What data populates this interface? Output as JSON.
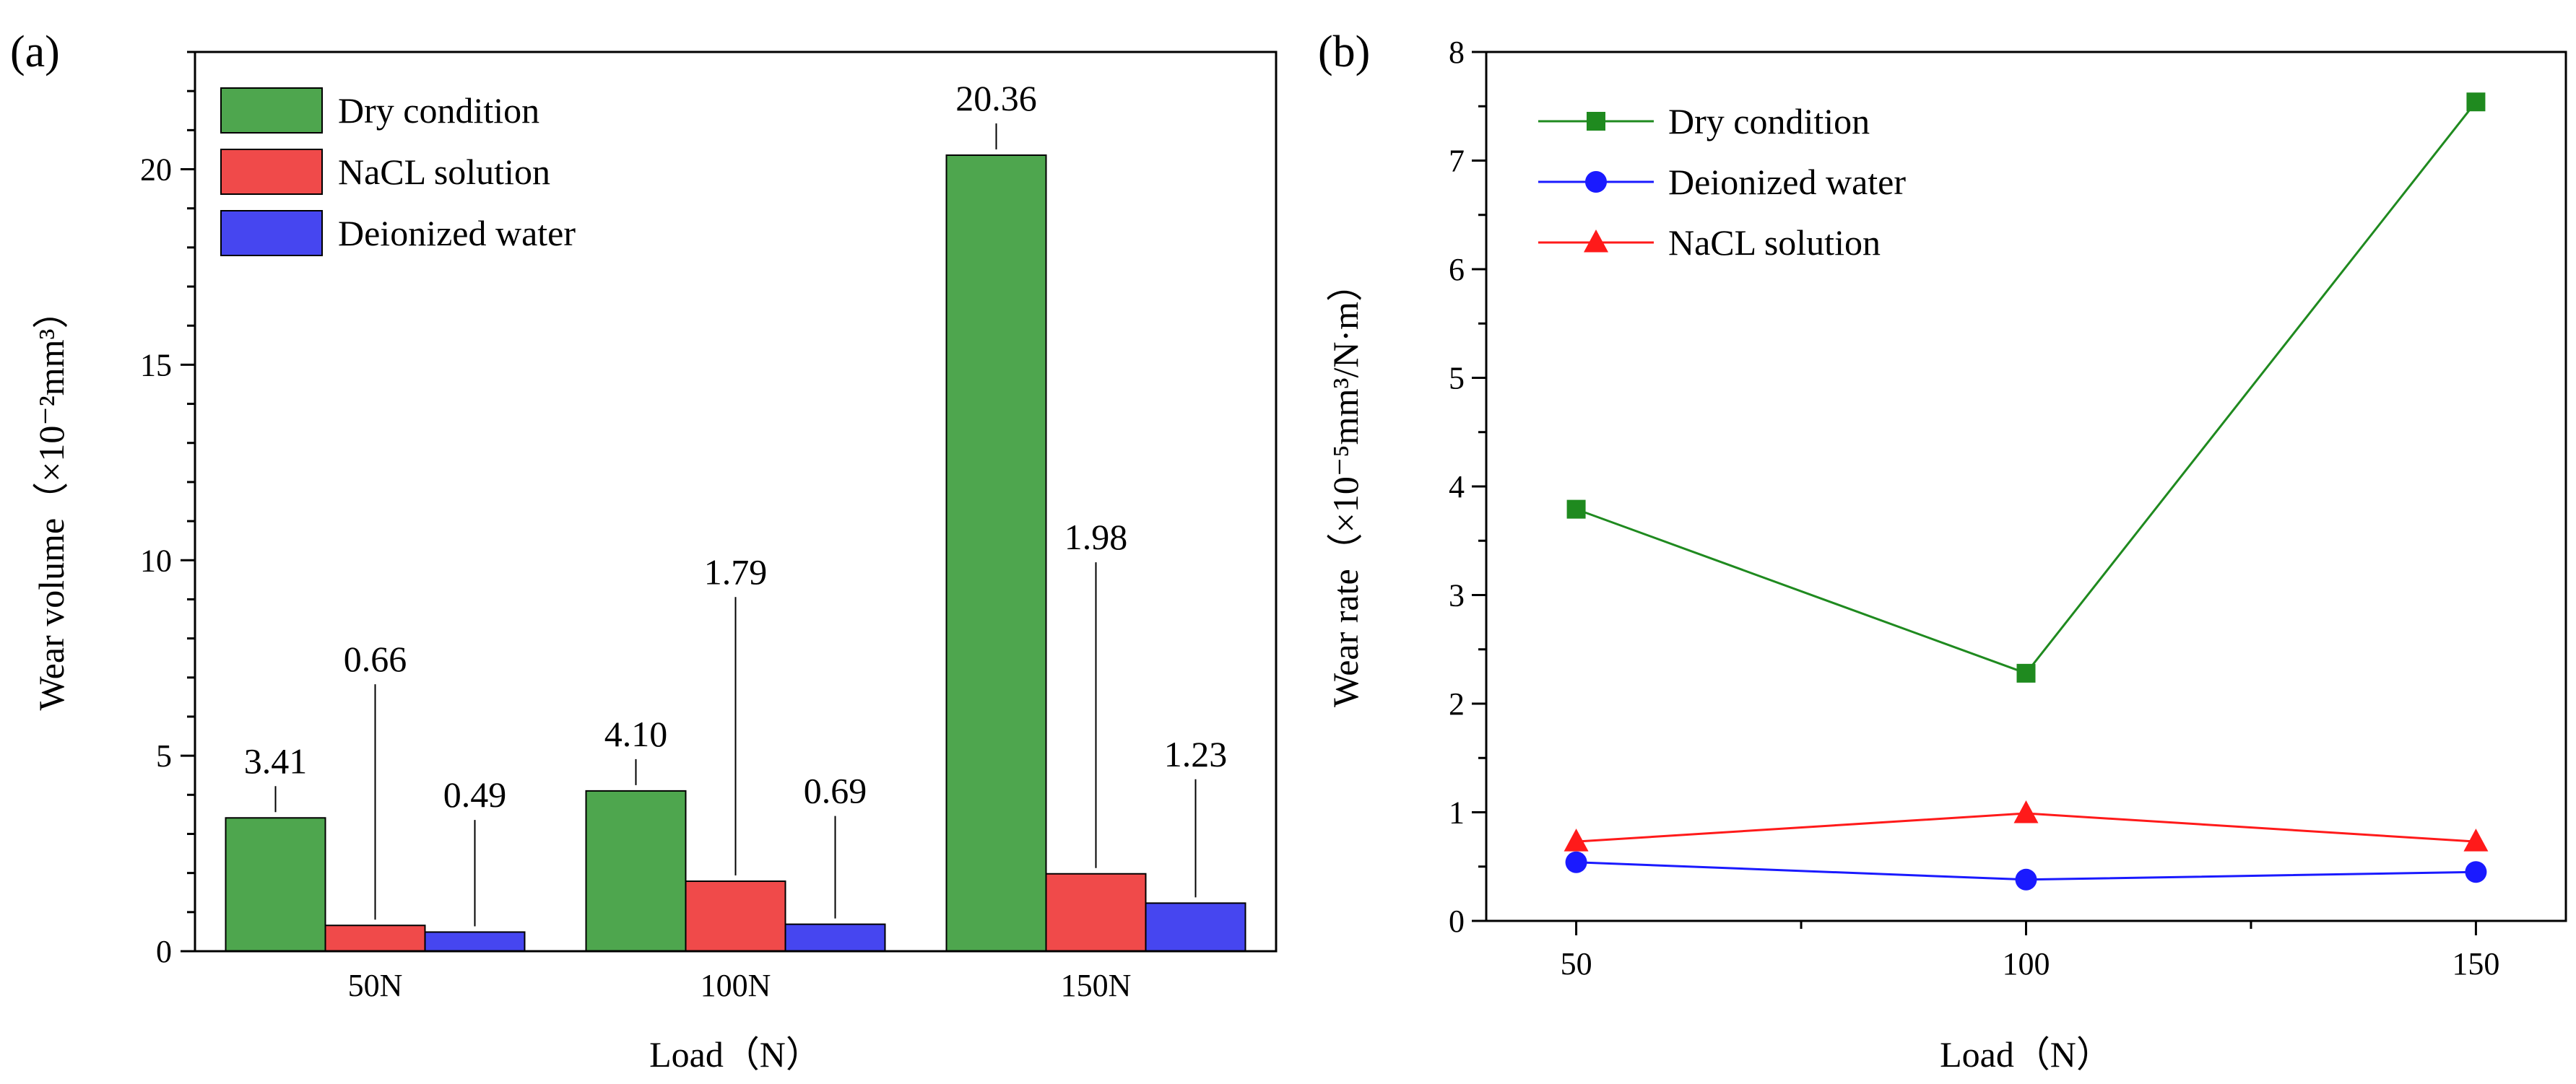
{
  "chart_data": [
    {
      "panel": "(a)",
      "type": "bar",
      "categories": [
        "50N",
        "100N",
        "150N"
      ],
      "series": [
        {
          "name": "Dry condition",
          "values": [
            3.41,
            4.1,
            20.36
          ],
          "labels": [
            "3.41",
            "4.10",
            "20.36"
          ],
          "color": "#4ea64e"
        },
        {
          "name": "NaCL solution",
          "values": [
            0.66,
            1.79,
            1.98
          ],
          "labels": [
            "0.66",
            "1.79",
            "1.98"
          ],
          "color": "#f04a4a"
        },
        {
          "name": "Deionized water",
          "values": [
            0.49,
            0.69,
            1.23
          ],
          "labels": [
            "0.49",
            "0.69",
            "1.23"
          ],
          "color": "#4646f0"
        }
      ],
      "xlabel": "Load（N）",
      "ylabel": "Wear volume（×10⁻²mm³）",
      "ylim": [
        0,
        23
      ],
      "yticks": [
        0,
        5,
        10,
        15,
        20
      ],
      "legend_position": "top-left"
    },
    {
      "panel": "(b)",
      "type": "line",
      "x": [
        50,
        100,
        150
      ],
      "series": [
        {
          "name": "Dry condition",
          "values": [
            3.79,
            2.28,
            7.54
          ],
          "color": "#1f8a1f",
          "marker": "square"
        },
        {
          "name": "Deionized water",
          "values": [
            0.54,
            0.38,
            0.45
          ],
          "color": "#1a1aff",
          "marker": "circle"
        },
        {
          "name": "NaCL solution",
          "values": [
            0.73,
            0.99,
            0.73
          ],
          "color": "#ff1a1a",
          "marker": "triangle"
        }
      ],
      "xlabel": "Load（N）",
      "ylabel": "Wear rate（×10⁻⁵mm³/N·m）",
      "xlim": [
        40,
        160
      ],
      "xticks": [
        50,
        100,
        150
      ],
      "ylim": [
        0,
        8
      ],
      "yticks": [
        0,
        1,
        2,
        3,
        4,
        5,
        6,
        7,
        8
      ],
      "legend_position": "top-left"
    }
  ]
}
